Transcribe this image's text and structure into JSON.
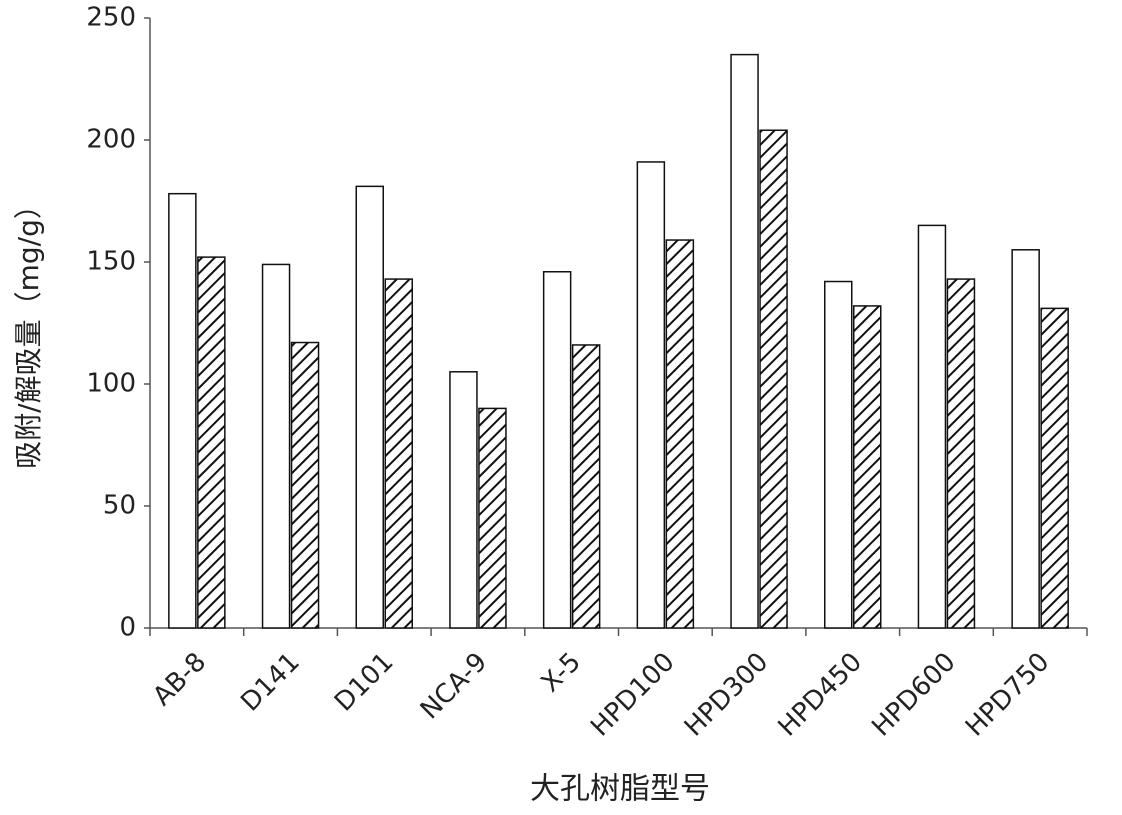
{
  "chart_data": {
    "type": "bar",
    "x_label": "大孔树脂型号",
    "y_label": "吸附/解吸量（mg/g）",
    "categories": [
      "AB-8",
      "D141",
      "D101",
      "NCA-9",
      "X-5",
      "HPD100",
      "HPD300",
      "HPD450",
      "HPD600",
      "HPD750"
    ],
    "series": [
      {
        "color": "#ffffff",
        "hatch": false,
        "values": [
          178,
          149,
          181,
          105,
          146,
          191,
          235,
          142,
          165,
          155
        ]
      },
      {
        "color": "#ffffff",
        "hatch": true,
        "values": [
          152,
          117,
          143,
          90,
          116,
          159,
          204,
          132,
          143,
          131
        ]
      }
    ],
    "ylim": [
      0,
      250
    ],
    "yticks": [
      0,
      50,
      100,
      150,
      200,
      250
    ],
    "grid": false
  }
}
